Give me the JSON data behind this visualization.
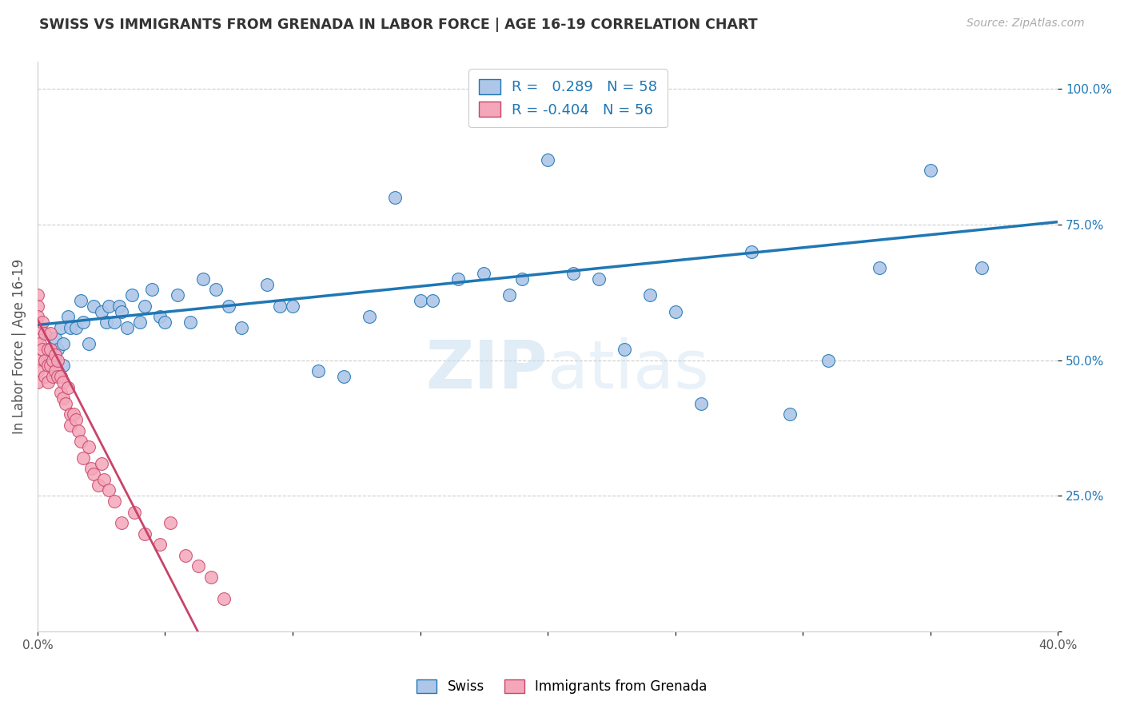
{
  "title": "SWISS VS IMMIGRANTS FROM GRENADA IN LABOR FORCE | AGE 16-19 CORRELATION CHART",
  "source": "Source: ZipAtlas.com",
  "xlabel": "",
  "ylabel": "In Labor Force | Age 16-19",
  "xlim": [
    0.0,
    0.4
  ],
  "ylim": [
    0.0,
    1.05
  ],
  "xticks": [
    0.0,
    0.05,
    0.1,
    0.15,
    0.2,
    0.25,
    0.3,
    0.35,
    0.4
  ],
  "xticklabels": [
    "0.0%",
    "",
    "",
    "",
    "",
    "",
    "",
    "",
    "40.0%"
  ],
  "yticks": [
    0.0,
    0.25,
    0.5,
    0.75,
    1.0
  ],
  "yticklabels": [
    "",
    "25.0%",
    "50.0%",
    "75.0%",
    "100.0%"
  ],
  "swiss_R": 0.289,
  "swiss_N": 58,
  "grenada_R": -0.404,
  "grenada_N": 56,
  "swiss_color": "#aec6e8",
  "swiss_line_color": "#1f77b4",
  "grenada_color": "#f4a7b9",
  "grenada_line_color": "#c8446a",
  "watermark": "ZIPatlas",
  "swiss_points_x": [
    0.005,
    0.007,
    0.008,
    0.009,
    0.01,
    0.01,
    0.012,
    0.013,
    0.015,
    0.017,
    0.018,
    0.02,
    0.022,
    0.025,
    0.027,
    0.028,
    0.03,
    0.032,
    0.033,
    0.035,
    0.037,
    0.04,
    0.042,
    0.045,
    0.048,
    0.05,
    0.055,
    0.06,
    0.065,
    0.07,
    0.075,
    0.08,
    0.09,
    0.095,
    0.1,
    0.11,
    0.12,
    0.13,
    0.14,
    0.15,
    0.155,
    0.165,
    0.175,
    0.185,
    0.19,
    0.2,
    0.21,
    0.22,
    0.23,
    0.24,
    0.25,
    0.26,
    0.28,
    0.295,
    0.31,
    0.33,
    0.35,
    0.37
  ],
  "swiss_points_y": [
    0.5,
    0.54,
    0.52,
    0.56,
    0.53,
    0.49,
    0.58,
    0.56,
    0.56,
    0.61,
    0.57,
    0.53,
    0.6,
    0.59,
    0.57,
    0.6,
    0.57,
    0.6,
    0.59,
    0.56,
    0.62,
    0.57,
    0.6,
    0.63,
    0.58,
    0.57,
    0.62,
    0.57,
    0.65,
    0.63,
    0.6,
    0.56,
    0.64,
    0.6,
    0.6,
    0.48,
    0.47,
    0.58,
    0.8,
    0.61,
    0.61,
    0.65,
    0.66,
    0.62,
    0.65,
    0.87,
    0.66,
    0.65,
    0.52,
    0.62,
    0.59,
    0.42,
    0.7,
    0.4,
    0.5,
    0.67,
    0.85,
    0.67
  ],
  "grenada_points_x": [
    0.0,
    0.0,
    0.0,
    0.0,
    0.0,
    0.0,
    0.0,
    0.001,
    0.001,
    0.002,
    0.002,
    0.003,
    0.003,
    0.003,
    0.004,
    0.004,
    0.004,
    0.005,
    0.005,
    0.005,
    0.006,
    0.006,
    0.007,
    0.007,
    0.008,
    0.008,
    0.009,
    0.009,
    0.01,
    0.01,
    0.011,
    0.012,
    0.013,
    0.013,
    0.014,
    0.015,
    0.016,
    0.017,
    0.018,
    0.02,
    0.021,
    0.022,
    0.024,
    0.025,
    0.026,
    0.028,
    0.03,
    0.033,
    0.038,
    0.042,
    0.048,
    0.052,
    0.058,
    0.063,
    0.068,
    0.073
  ],
  "grenada_points_y": [
    0.62,
    0.6,
    0.58,
    0.54,
    0.5,
    0.48,
    0.46,
    0.56,
    0.53,
    0.57,
    0.52,
    0.55,
    0.5,
    0.47,
    0.52,
    0.49,
    0.46,
    0.55,
    0.52,
    0.49,
    0.5,
    0.47,
    0.51,
    0.48,
    0.5,
    0.47,
    0.47,
    0.44,
    0.46,
    0.43,
    0.42,
    0.45,
    0.4,
    0.38,
    0.4,
    0.39,
    0.37,
    0.35,
    0.32,
    0.34,
    0.3,
    0.29,
    0.27,
    0.31,
    0.28,
    0.26,
    0.24,
    0.2,
    0.22,
    0.18,
    0.16,
    0.2,
    0.14,
    0.12,
    0.1,
    0.06
  ],
  "swiss_trendline_x": [
    0.0,
    0.4
  ],
  "swiss_trendline_y": [
    0.565,
    0.755
  ],
  "grenada_trendline_x": [
    0.0,
    0.065
  ],
  "grenada_trendline_y": [
    0.575,
    -0.02
  ],
  "background_color": "#ffffff",
  "grid_color": "#cccccc"
}
